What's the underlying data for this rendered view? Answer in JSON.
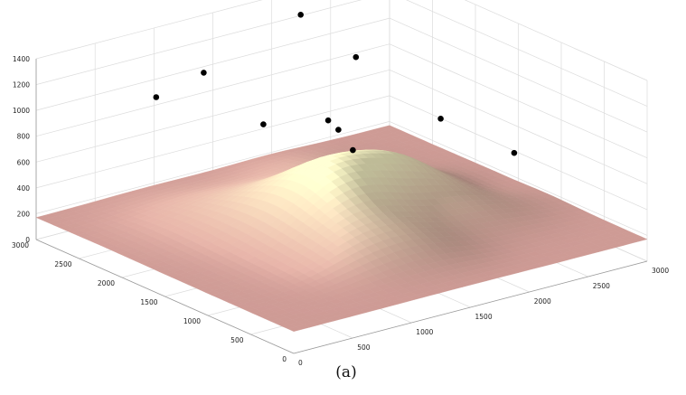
{
  "caption": "(a)",
  "chart_data": {
    "type": "scatter",
    "subtype": "3d-surface-with-points",
    "title": "",
    "xlabel": "",
    "ylabel": "",
    "zlabel": "",
    "grid": true,
    "xlim": [
      0,
      3000
    ],
    "ylim": [
      0,
      3000
    ],
    "zlim": [
      0,
      1400
    ],
    "x_ticks": [
      0,
      500,
      1000,
      1500,
      2000,
      2500,
      3000
    ],
    "y_ticks": [
      0,
      500,
      1000,
      1500,
      2000,
      2500,
      3000
    ],
    "z_ticks": [
      0,
      200,
      400,
      600,
      800,
      1000,
      1200,
      1400
    ],
    "surface": {
      "base_level": 170,
      "peaks": [
        {
          "x": 1550,
          "y": 1600,
          "height": 470,
          "spread": 450
        },
        {
          "x": 2150,
          "y": 1750,
          "height": 170,
          "spread": 300
        },
        {
          "x": 1150,
          "y": 850,
          "height": 90,
          "spread": 300
        },
        {
          "x": 2350,
          "y": 1200,
          "height": 90,
          "spread": 320
        },
        {
          "x": 900,
          "y": 2250,
          "height": 70,
          "spread": 380
        },
        {
          "x": 1600,
          "y": 700,
          "height": 60,
          "spread": 260
        },
        {
          "x": 2000,
          "y": 2500,
          "height": 60,
          "spread": 300
        },
        {
          "x": 1900,
          "y": 1300,
          "height": -55,
          "spread": 260
        },
        {
          "x": 1900,
          "y": 2200,
          "height": -40,
          "spread": 260
        },
        {
          "x": 2600,
          "y": 1500,
          "height": -30,
          "spread": 220
        }
      ],
      "color_low": "#c98f8f",
      "color_high": "#f4f0c2"
    },
    "points": [
      {
        "x": 800,
        "y": 2700,
        "z": 1000
      },
      {
        "x": 1350,
        "y": 2900,
        "z": 1000
      },
      {
        "x": 1200,
        "y": 2000,
        "z": 900
      },
      {
        "x": 2100,
        "y": 2800,
        "z": 1300
      },
      {
        "x": 1750,
        "y": 2000,
        "z": 800
      },
      {
        "x": 1800,
        "y": 1950,
        "z": 730
      },
      {
        "x": 1850,
        "y": 1850,
        "z": 590
      },
      {
        "x": 2350,
        "y": 2500,
        "z": 1000
      },
      {
        "x": 2450,
        "y": 1650,
        "z": 750
      },
      {
        "x": 2600,
        "y": 1000,
        "z": 640
      }
    ],
    "point_color": "#000000"
  }
}
